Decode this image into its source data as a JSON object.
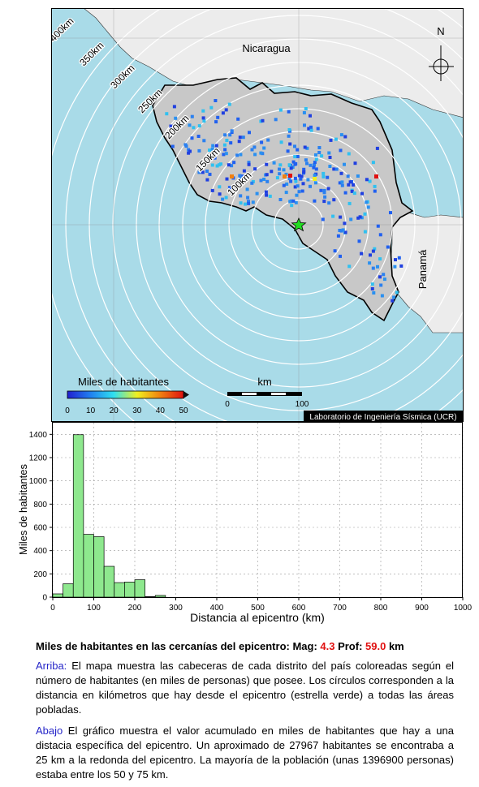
{
  "map": {
    "countries": [
      "Nicaragua",
      "Panamá"
    ],
    "ring_labels": [
      "400km",
      "350km",
      "300km",
      "250km",
      "200km",
      "150km",
      "100km"
    ],
    "north_label": "N",
    "legend": {
      "title": "Miles de habitantes",
      "ticks": [
        "0",
        "10",
        "20",
        "30",
        "40",
        "50"
      ]
    },
    "scale": {
      "title": "km",
      "ticks": [
        "0",
        "100"
      ]
    },
    "credit": "Laboratorio de Ingeniería Sísmica (UCR)",
    "colors": {
      "ocean": "#a9dbe8",
      "land_cr": "#c8c8c8",
      "land_other": "#ececec",
      "epicenter": "#22dd22"
    }
  },
  "chart_data": {
    "type": "bar",
    "xlabel": "Distancia al epicentro (km)",
    "ylabel": "Miles de habitantes",
    "xlim": [
      0,
      1000
    ],
    "ylim": [
      0,
      1500
    ],
    "xticks": [
      "0",
      "100",
      "200",
      "300",
      "400",
      "500",
      "600",
      "700",
      "800",
      "900",
      "1000"
    ],
    "yticks": [
      "0",
      "200",
      "400",
      "600",
      "800",
      "1000",
      "1200",
      "1400"
    ],
    "bin_width": 25,
    "bins_start": [
      0,
      25,
      50,
      75,
      100,
      125,
      150,
      175,
      200,
      225,
      250,
      275
    ],
    "values": [
      28,
      115,
      1397,
      540,
      520,
      265,
      125,
      130,
      150,
      5,
      15,
      0
    ],
    "bar_color": "#8ee88e"
  },
  "caption": {
    "title_prefix": "Miles de habitantes en las cercanías del epicentro: Mag: ",
    "mag": "4.3",
    "prof_label": " Prof: ",
    "prof": "59.0",
    "unit": " km",
    "arriba_label": "Arriba:",
    "arriba_text": " El mapa muestra las cabeceras de cada distrito del país coloreadas según el número de habitantes (en miles de personas) que posee.  Los círculos corresponden a la distancia en kilómetros que hay desde el epicentro (estrella verde) a todas las áreas pobladas.",
    "abajo_label": "Abajo",
    "abajo_text": " El gráfico muestra el valor acumulado en miles de habitantes que hay a una distacia específica del epicentro.  Un aproximado de 27967 habitantes se encontraba a 25 km a la redonda del epicentro.  La mayoría de la población (unas 1396900 personas) estaba entre los 50 y 75 km."
  }
}
